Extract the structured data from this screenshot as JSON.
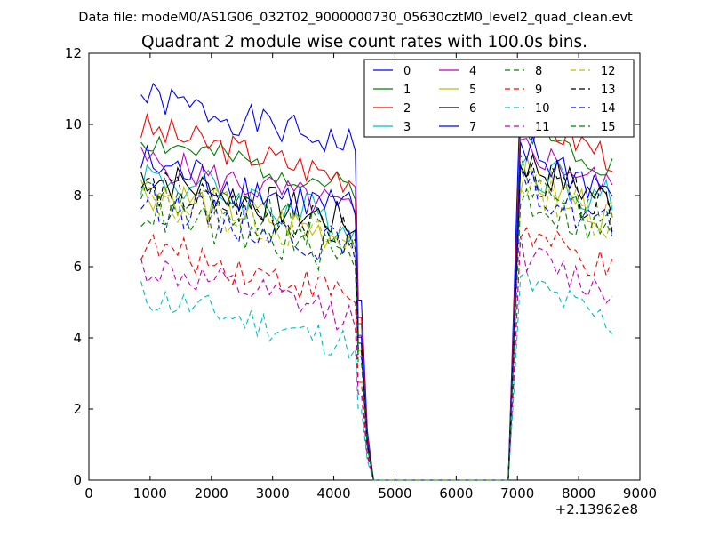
{
  "header": {
    "subtitle": "Data file: modeM0/AS1G06_032T02_9000000730_05630cztM0_level2_quad_clean.evt"
  },
  "chart_data": {
    "type": "line",
    "title": "Quadrant 2 module wise count rates with 100.0s bins.",
    "xlabel": "",
    "ylabel": "",
    "x_offset_label": "+2.13962e8",
    "xlim": [
      0,
      9000
    ],
    "ylim": [
      0,
      12
    ],
    "x_ticks": [
      0,
      1000,
      2000,
      3000,
      4000,
      5000,
      6000,
      7000,
      8000,
      9000
    ],
    "y_ticks": [
      0,
      2,
      4,
      6,
      8,
      10,
      12
    ],
    "legend_position": "top-right",
    "legend_columns": 4,
    "x": [
      850,
      950,
      1050,
      1150,
      1250,
      1350,
      1450,
      1550,
      1650,
      1750,
      1850,
      1950,
      2050,
      2150,
      2250,
      2350,
      2450,
      2550,
      2650,
      2750,
      2850,
      2950,
      3050,
      3150,
      3250,
      3350,
      3450,
      3550,
      3650,
      3750,
      3850,
      3950,
      4050,
      4150,
      4250,
      4350,
      4400,
      4450,
      4550,
      4650,
      4750,
      4850,
      4950,
      5050,
      5150,
      5250,
      5350,
      5450,
      5550,
      5650,
      5750,
      5850,
      5950,
      6050,
      6150,
      6250,
      6350,
      6450,
      6550,
      6650,
      6750,
      6850,
      6950,
      7050,
      7150,
      7250,
      7350,
      7450,
      7550,
      7650,
      7750,
      7850,
      7950,
      8050,
      8150,
      8250,
      8350,
      8450,
      8550
    ],
    "series": [
      {
        "name": "0",
        "color": "#0000ff",
        "dash": "solid",
        "base": 10.8,
        "amp": 0.3,
        "seed": 1
      },
      {
        "name": "1",
        "color": "#008000",
        "dash": "solid",
        "base": 9.6,
        "amp": 0.25,
        "seed": 2
      },
      {
        "name": "2",
        "color": "#ff0000",
        "dash": "solid",
        "base": 9.9,
        "amp": 0.3,
        "seed": 3
      },
      {
        "name": "3",
        "color": "#00bfbf",
        "dash": "solid",
        "base": 8.6,
        "amp": 0.4,
        "seed": 4
      },
      {
        "name": "4",
        "color": "#bf00bf",
        "dash": "solid",
        "base": 9.0,
        "amp": 0.3,
        "seed": 5
      },
      {
        "name": "5",
        "color": "#bfbf00",
        "dash": "solid",
        "base": 8.2,
        "amp": 0.35,
        "seed": 6
      },
      {
        "name": "6",
        "color": "#000000",
        "dash": "solid",
        "base": 8.6,
        "amp": 0.35,
        "seed": 7
      },
      {
        "name": "7",
        "color": "#0000ff",
        "dash": "solid",
        "base": 8.9,
        "amp": 0.4,
        "seed": 8
      },
      {
        "name": "8",
        "color": "#008000",
        "dash": "dashed",
        "base": 8.2,
        "amp": 0.35,
        "seed": 9
      },
      {
        "name": "9",
        "color": "#ff0000",
        "dash": "dashed",
        "base": 6.6,
        "amp": 0.3,
        "seed": 10
      },
      {
        "name": "10",
        "color": "#00bfbf",
        "dash": "dashed",
        "base": 5.2,
        "amp": 0.3,
        "seed": 11
      },
      {
        "name": "11",
        "color": "#bf00bf",
        "dash": "dashed",
        "base": 6.0,
        "amp": 0.3,
        "seed": 12
      },
      {
        "name": "12",
        "color": "#bfbf00",
        "dash": "dashed",
        "base": 8.0,
        "amp": 0.35,
        "seed": 13
      },
      {
        "name": "13",
        "color": "#000000",
        "dash": "dashed",
        "base": 8.3,
        "amp": 0.35,
        "seed": 14
      },
      {
        "name": "14",
        "color": "#0000ff",
        "dash": "dashed",
        "base": 7.9,
        "amp": 0.35,
        "seed": 15
      },
      {
        "name": "15",
        "color": "#008000",
        "dash": "dashed",
        "base": 7.6,
        "amp": 0.35,
        "seed": 16
      }
    ]
  }
}
